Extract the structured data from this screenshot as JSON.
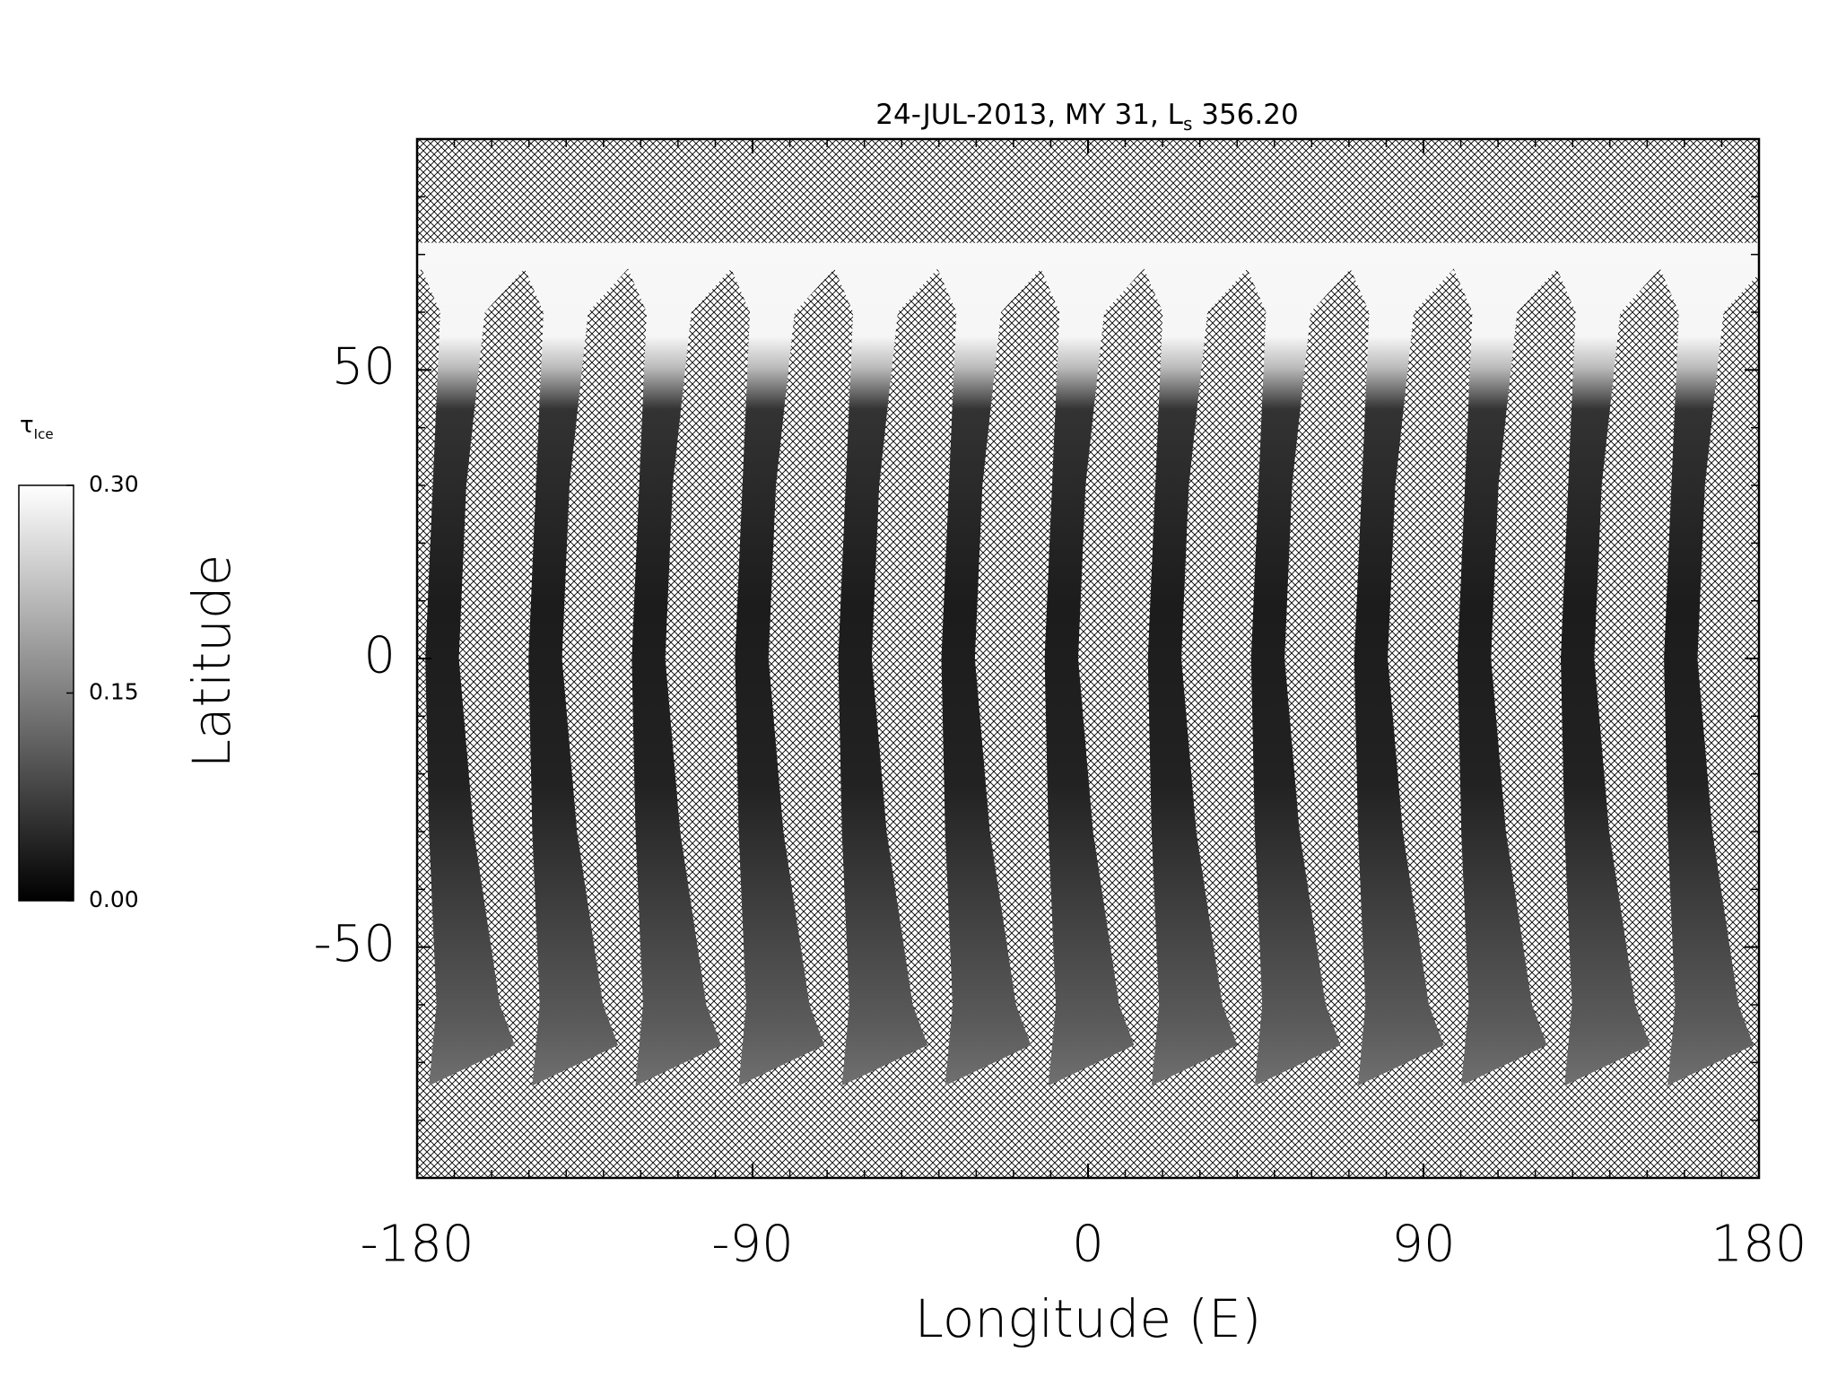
{
  "chart_data": {
    "type": "swath-map",
    "title": {
      "text": "24-JUL-2013, MY 31,  L",
      "subscript": "s",
      "suffix": " 356.20"
    },
    "xlabel": "Longitude (E)",
    "ylabel": "Latitude",
    "xlim": [
      -180,
      180
    ],
    "ylim": [
      -90,
      90
    ],
    "xticks": [
      -180,
      -90,
      0,
      90,
      180
    ],
    "yticks": [
      -50,
      0,
      50
    ],
    "minor_tick_step": 10,
    "colorbar": {
      "label": "τ",
      "label_subscript": "Ice",
      "lim": [
        0,
        0.3
      ],
      "ticks": [
        {
          "value": 0,
          "label": "0.00"
        },
        {
          "value": 0.15,
          "label": "0.15"
        },
        {
          "value": 0.3,
          "label": "0.30"
        }
      ]
    }
  }
}
